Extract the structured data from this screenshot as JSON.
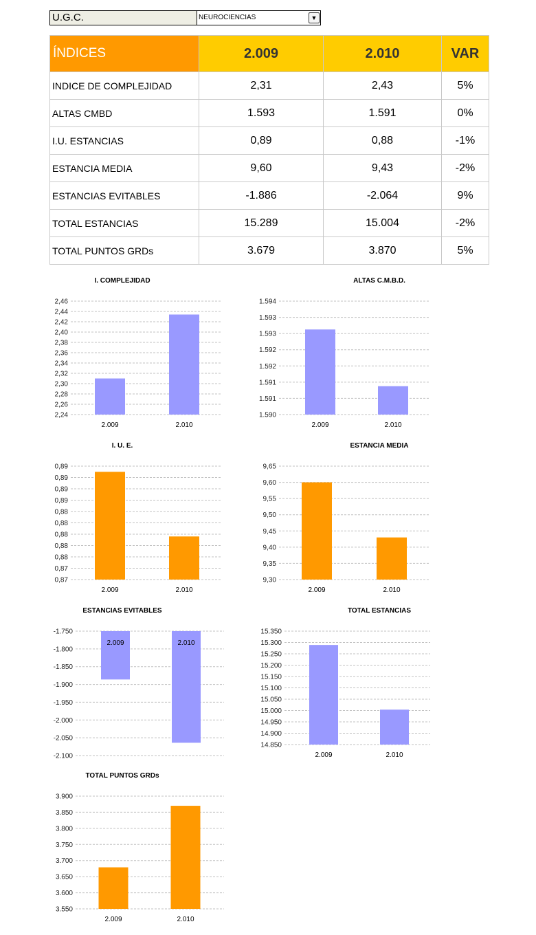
{
  "ugc": {
    "label": "U.G.C.",
    "selected": "NEUROCIENCIAS"
  },
  "table": {
    "headers": [
      "ÍNDICES",
      "2.009",
      "2.010",
      "VAR"
    ],
    "rows": [
      [
        "INDICE DE COMPLEJIDAD",
        "2,31",
        "2,43",
        "5%"
      ],
      [
        "ALTAS CMBD",
        "1.593",
        "1.591",
        "0%"
      ],
      [
        "I.U. ESTANCIAS",
        "0,89",
        "0,88",
        "-1%"
      ],
      [
        "ESTANCIA MEDIA",
        "9,60",
        "9,43",
        "-2%"
      ],
      [
        "ESTANCIAS EVITABLES",
        "-1.886",
        "-2.064",
        "9%"
      ],
      [
        "TOTAL ESTANCIAS",
        "15.289",
        "15.004",
        "-2%"
      ],
      [
        "TOTAL PUNTOS GRDs",
        "3.679",
        "3.870",
        "5%"
      ]
    ]
  },
  "colors": {
    "blue": "#9999ff",
    "orange": "#ff9900",
    "grid": "#c0c0c0",
    "header_orange": "#ff9900",
    "header_yellow": "#ffcc00"
  },
  "chart_data": [
    {
      "type": "bar",
      "title": "I. COMPLEJIDAD",
      "categories": [
        "2.009",
        "2.010"
      ],
      "values": [
        2.31,
        2.434
      ],
      "ylim": [
        2.24,
        2.46
      ],
      "ticks": [
        "2,46",
        "2,44",
        "2,42",
        "2,40",
        "2,38",
        "2,36",
        "2,34",
        "2,32",
        "2,30",
        "2,28",
        "2,26",
        "2,24"
      ],
      "color": "blue",
      "grid": true,
      "legend": "none"
    },
    {
      "type": "bar",
      "title": "ALTAS C.M.B.D.",
      "categories": [
        "2.009",
        "2.010"
      ],
      "values": [
        1593,
        1591
      ],
      "ylim": [
        1590,
        1594
      ],
      "ticks": [
        "1.594",
        "1.593",
        "1.593",
        "1.592",
        "1.592",
        "1.591",
        "1.591",
        "1.590"
      ],
      "color": "blue",
      "grid": true,
      "legend": "none"
    },
    {
      "type": "bar",
      "title": "I. U. E.",
      "categories": [
        "2.009",
        "2.010"
      ],
      "values": [
        0.889,
        0.8776
      ],
      "ylim": [
        0.87,
        0.89
      ],
      "ticks": [
        "0,89",
        "0,89",
        "0,89",
        "0,89",
        "0,88",
        "0,88",
        "0,88",
        "0,88",
        "0,88",
        "0,87",
        "0,87"
      ],
      "color": "orange",
      "grid": true,
      "legend": "none"
    },
    {
      "type": "bar",
      "title": "ESTANCIA MEDIA",
      "categories": [
        "2.009",
        "2.010"
      ],
      "values": [
        9.6,
        9.43
      ],
      "ylim": [
        9.3,
        9.65
      ],
      "ticks": [
        "9,65",
        "9,60",
        "9,55",
        "9,50",
        "9,45",
        "9,40",
        "9,35",
        "9,30"
      ],
      "color": "orange",
      "grid": true,
      "legend": "none"
    },
    {
      "type": "bar",
      "title": "ESTANCIAS EVITABLES",
      "categories": [
        "2.009",
        "2.010"
      ],
      "values": [
        -1886,
        -2064
      ],
      "ylim": [
        -2100,
        -1750
      ],
      "ticks": [
        "-1.750",
        "-1.800",
        "-1.850",
        "-1.900",
        "-1.950",
        "-2.000",
        "-2.050",
        "-2.100"
      ],
      "color": "blue",
      "grid": true,
      "legend": "none",
      "inside_labels": true
    },
    {
      "type": "bar",
      "title": "TOTAL ESTANCIAS",
      "categories": [
        "2.009",
        "2.010"
      ],
      "values": [
        15289,
        15004
      ],
      "ylim": [
        14850,
        15350
      ],
      "ticks": [
        "15.350",
        "15.300",
        "15.250",
        "15.200",
        "15.150",
        "15.100",
        "15.050",
        "15.000",
        "14.950",
        "14.900",
        "14.850"
      ],
      "color": "blue",
      "grid": true,
      "legend": "none"
    },
    {
      "type": "bar",
      "title": "TOTAL PUNTOS GRDs",
      "categories": [
        "2.009",
        "2.010"
      ],
      "values": [
        3679,
        3870
      ],
      "ylim": [
        3550,
        3900
      ],
      "ticks": [
        "3.900",
        "3.850",
        "3.800",
        "3.750",
        "3.700",
        "3.650",
        "3.600",
        "3.550"
      ],
      "color": "orange",
      "grid": true,
      "legend": "none"
    }
  ]
}
